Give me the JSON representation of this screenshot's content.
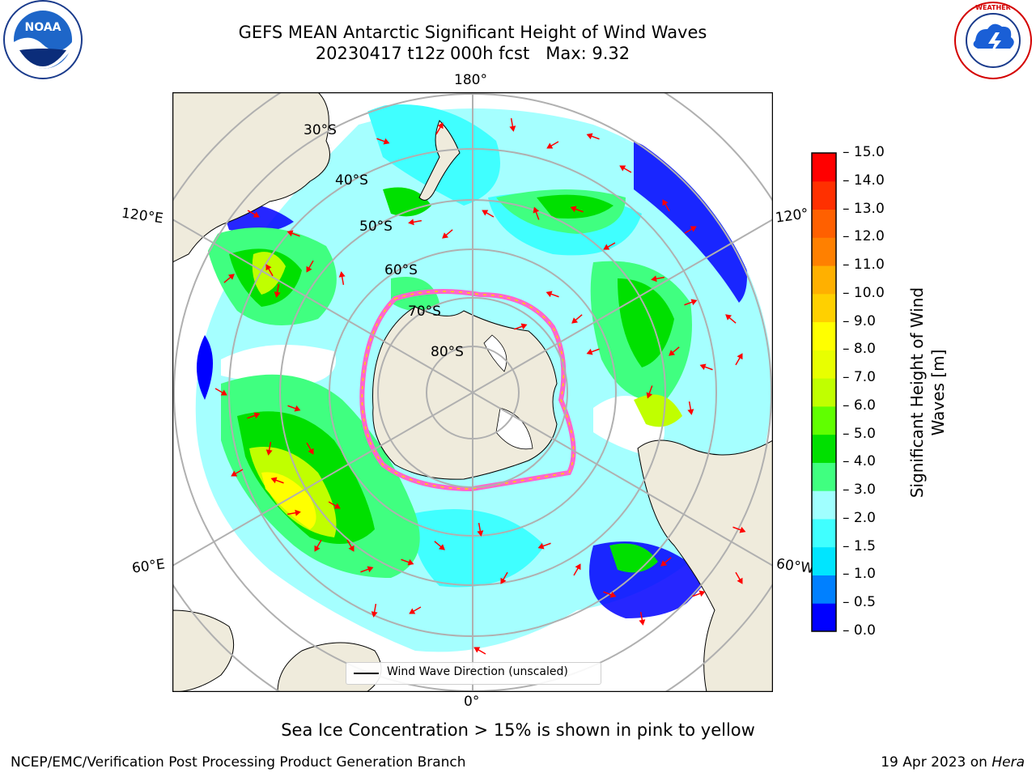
{
  "title": {
    "line1": "GEFS MEAN Antarctic Significant Height of Wind Waves",
    "line2": "20230417 t12z 000h fcst   Max: 9.32"
  },
  "logos": {
    "left": "noara-logo",
    "right": "nws-logo",
    "noaa_text": "NOAA",
    "nws_text": "NATIONAL WEATHER SERVICE"
  },
  "map": {
    "projection": "south-polar-stereographic",
    "longitude_labels": {
      "top": "180°",
      "bottom": "0°",
      "upper_left": "120°E",
      "upper_right": "120°",
      "lower_left": "60°E",
      "lower_right": "60°W"
    },
    "latitude_labels": [
      "30°S",
      "40°S",
      "50°S",
      "60°S",
      "70°S",
      "80°S"
    ],
    "legend_label": "Wind Wave Direction (unscaled)",
    "colors": {
      "land": "#efebdc",
      "ocean_background": "#ffffff",
      "gridline": "#b0b0b0",
      "arrow": "#ff0000",
      "sea_ice": "#ff66cc"
    }
  },
  "colorbar": {
    "label": "Significant Height of Wind Waves [m]",
    "ticks": [
      "0.0",
      "0.5",
      "1.0",
      "1.5",
      "2.0",
      "3.0",
      "4.0",
      "5.0",
      "6.0",
      "7.0",
      "8.0",
      "9.0",
      "10.0",
      "11.0",
      "12.0",
      "13.0",
      "14.0",
      "15.0"
    ],
    "colors": [
      "#0000ff",
      "#0080ff",
      "#00e5ff",
      "#40ffff",
      "#a0ffff",
      "#40ff80",
      "#00e000",
      "#60ff00",
      "#c0ff00",
      "#e8ff00",
      "#ffff00",
      "#ffd000",
      "#ffb000",
      "#ff8000",
      "#ff6000",
      "#ff3000",
      "#ff0000"
    ]
  },
  "note": "Sea Ice Concentration > 15% is shown in pink to yellow",
  "footer": {
    "left": "NCEP/EMC/Verification Post Processing Product Generation Branch",
    "right_date": "19 Apr 2023 on ",
    "right_system": "Hera"
  }
}
